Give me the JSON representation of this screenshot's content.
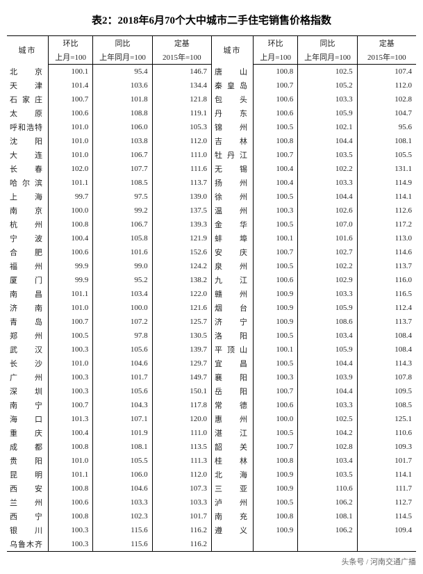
{
  "title": "表2：2018年6月70个大中城市二手住宅销售价格指数",
  "headers": {
    "city": "城市",
    "hb": "环比",
    "tb": "同比",
    "db": "定基",
    "hb_sub": "上月=100",
    "tb_sub": "上年同月=100",
    "db_sub": "2015年=100"
  },
  "left": [
    {
      "c": "北　　京",
      "v": [
        100.1,
        95.4,
        146.7
      ]
    },
    {
      "c": "天　　津",
      "v": [
        101.4,
        103.6,
        134.4
      ]
    },
    {
      "c": "石 家 庄",
      "v": [
        100.7,
        101.8,
        121.8
      ]
    },
    {
      "c": "太　　原",
      "v": [
        100.6,
        108.8,
        119.1
      ]
    },
    {
      "c": "呼和浩特",
      "v": [
        101.0,
        106.0,
        105.3
      ]
    },
    {
      "c": "沈　　阳",
      "v": [
        101.0,
        103.8,
        112.0
      ]
    },
    {
      "c": "大　　连",
      "v": [
        101.0,
        106.7,
        111.0
      ]
    },
    {
      "c": "长　　春",
      "v": [
        102.0,
        107.7,
        111.6
      ]
    },
    {
      "c": "哈 尔 滨",
      "v": [
        101.1,
        108.5,
        113.7
      ]
    },
    {
      "c": "上　　海",
      "v": [
        99.7,
        97.5,
        139.0
      ]
    },
    {
      "c": "南　　京",
      "v": [
        100.0,
        99.2,
        137.5
      ]
    },
    {
      "c": "杭　　州",
      "v": [
        100.8,
        106.7,
        139.3
      ]
    },
    {
      "c": "宁　　波",
      "v": [
        100.4,
        105.8,
        121.9
      ]
    },
    {
      "c": "合　　肥",
      "v": [
        100.6,
        101.6,
        152.6
      ]
    },
    {
      "c": "福　　州",
      "v": [
        99.9,
        99.0,
        124.2
      ]
    },
    {
      "c": "厦　　门",
      "v": [
        99.9,
        95.2,
        138.2
      ]
    },
    {
      "c": "南　　昌",
      "v": [
        101.1,
        103.4,
        122.0
      ]
    },
    {
      "c": "济　　南",
      "v": [
        101.0,
        100.0,
        121.6
      ]
    },
    {
      "c": "青　　岛",
      "v": [
        100.7,
        107.2,
        125.7
      ]
    },
    {
      "c": "郑　　州",
      "v": [
        100.5,
        97.8,
        130.5
      ]
    },
    {
      "c": "武　　汉",
      "v": [
        100.3,
        105.6,
        139.7
      ]
    },
    {
      "c": "长　　沙",
      "v": [
        101.0,
        104.6,
        129.7
      ]
    },
    {
      "c": "广　　州",
      "v": [
        100.3,
        101.7,
        149.7
      ]
    },
    {
      "c": "深　　圳",
      "v": [
        100.3,
        105.6,
        150.1
      ]
    },
    {
      "c": "南　　宁",
      "v": [
        100.7,
        104.3,
        117.8
      ]
    },
    {
      "c": "海　　口",
      "v": [
        101.3,
        107.1,
        120.0
      ]
    },
    {
      "c": "重　　庆",
      "v": [
        100.4,
        101.9,
        111.0
      ]
    },
    {
      "c": "成　　都",
      "v": [
        100.8,
        108.1,
        113.5
      ]
    },
    {
      "c": "贵　　阳",
      "v": [
        101.0,
        105.5,
        111.3
      ]
    },
    {
      "c": "昆　　明",
      "v": [
        101.1,
        106.0,
        112.0
      ]
    },
    {
      "c": "西　　安",
      "v": [
        100.8,
        104.6,
        107.3
      ]
    },
    {
      "c": "兰　　州",
      "v": [
        100.6,
        103.3,
        103.3
      ]
    },
    {
      "c": "西　　宁",
      "v": [
        100.8,
        102.3,
        101.7
      ]
    },
    {
      "c": "银　　川",
      "v": [
        100.3,
        115.6,
        116.2
      ]
    },
    {
      "c": "乌鲁木齐",
      "v": [
        100.3,
        115.6,
        116.2
      ]
    }
  ],
  "right": [
    {
      "c": "唐　　山",
      "v": [
        100.8,
        102.5,
        107.4
      ]
    },
    {
      "c": "秦 皇 岛",
      "v": [
        100.7,
        105.2,
        112.0
      ]
    },
    {
      "c": "包　　头",
      "v": [
        100.6,
        103.3,
        102.8
      ]
    },
    {
      "c": "丹　　东",
      "v": [
        100.6,
        105.9,
        104.7
      ]
    },
    {
      "c": "锦　　州",
      "v": [
        100.5,
        102.1,
        95.6
      ]
    },
    {
      "c": "吉　　林",
      "v": [
        100.8,
        104.4,
        108.1
      ]
    },
    {
      "c": "牡 丹 江",
      "v": [
        100.7,
        103.5,
        105.5
      ]
    },
    {
      "c": "无　　锡",
      "v": [
        100.4,
        102.2,
        131.1
      ]
    },
    {
      "c": "扬　　州",
      "v": [
        100.4,
        103.3,
        114.9
      ]
    },
    {
      "c": "徐　　州",
      "v": [
        100.5,
        104.4,
        114.1
      ]
    },
    {
      "c": "温　　州",
      "v": [
        100.3,
        102.6,
        112.6
      ]
    },
    {
      "c": "金　　华",
      "v": [
        100.5,
        107.0,
        117.2
      ]
    },
    {
      "c": "蚌　　埠",
      "v": [
        100.1,
        101.6,
        113.0
      ]
    },
    {
      "c": "安　　庆",
      "v": [
        100.7,
        102.7,
        114.6
      ]
    },
    {
      "c": "泉　　州",
      "v": [
        100.5,
        102.2,
        113.7
      ]
    },
    {
      "c": "九　　江",
      "v": [
        100.6,
        102.9,
        116.0
      ]
    },
    {
      "c": "赣　　州",
      "v": [
        100.9,
        103.3,
        116.5
      ]
    },
    {
      "c": "烟　　台",
      "v": [
        100.9,
        105.9,
        112.4
      ]
    },
    {
      "c": "济　　宁",
      "v": [
        100.9,
        108.6,
        113.7
      ]
    },
    {
      "c": "洛　　阳",
      "v": [
        100.5,
        103.4,
        108.4
      ]
    },
    {
      "c": "平 顶 山",
      "v": [
        100.1,
        105.9,
        108.4
      ]
    },
    {
      "c": "宜　　昌",
      "v": [
        100.5,
        104.4,
        114.3
      ]
    },
    {
      "c": "襄　　阳",
      "v": [
        100.3,
        103.9,
        107.8
      ]
    },
    {
      "c": "岳　　阳",
      "v": [
        100.7,
        104.4,
        109.5
      ]
    },
    {
      "c": "常　　德",
      "v": [
        100.6,
        103.3,
        108.5
      ]
    },
    {
      "c": "惠　　州",
      "v": [
        100.0,
        102.5,
        125.1
      ]
    },
    {
      "c": "湛　　江",
      "v": [
        100.5,
        104.2,
        110.6
      ]
    },
    {
      "c": "韶　　关",
      "v": [
        100.7,
        102.8,
        109.3
      ]
    },
    {
      "c": "桂　　林",
      "v": [
        100.8,
        103.4,
        101.7
      ]
    },
    {
      "c": "北　　海",
      "v": [
        100.9,
        103.5,
        114.1
      ]
    },
    {
      "c": "三　　亚",
      "v": [
        100.9,
        110.6,
        111.7
      ]
    },
    {
      "c": "泸　　州",
      "v": [
        100.5,
        106.2,
        112.7
      ]
    },
    {
      "c": "南　　充",
      "v": [
        100.8,
        108.1,
        114.5
      ]
    },
    {
      "c": "遵　　义",
      "v": [
        100.9,
        106.2,
        109.4
      ]
    },
    {
      "c": "",
      "v": [
        "",
        "",
        ""
      ]
    }
  ],
  "footer": "头条号 / 河南交通广播",
  "style": {
    "colors": {
      "bg": "#ffffff",
      "text": "#000000",
      "border": "#000000",
      "footer": "#666666"
    },
    "font_family": "SimSun",
    "title_fontsize": 15,
    "body_fontsize": 11,
    "col_widths": {
      "city": 48,
      "hb": 52,
      "tb": 72,
      "db": 72
    }
  }
}
